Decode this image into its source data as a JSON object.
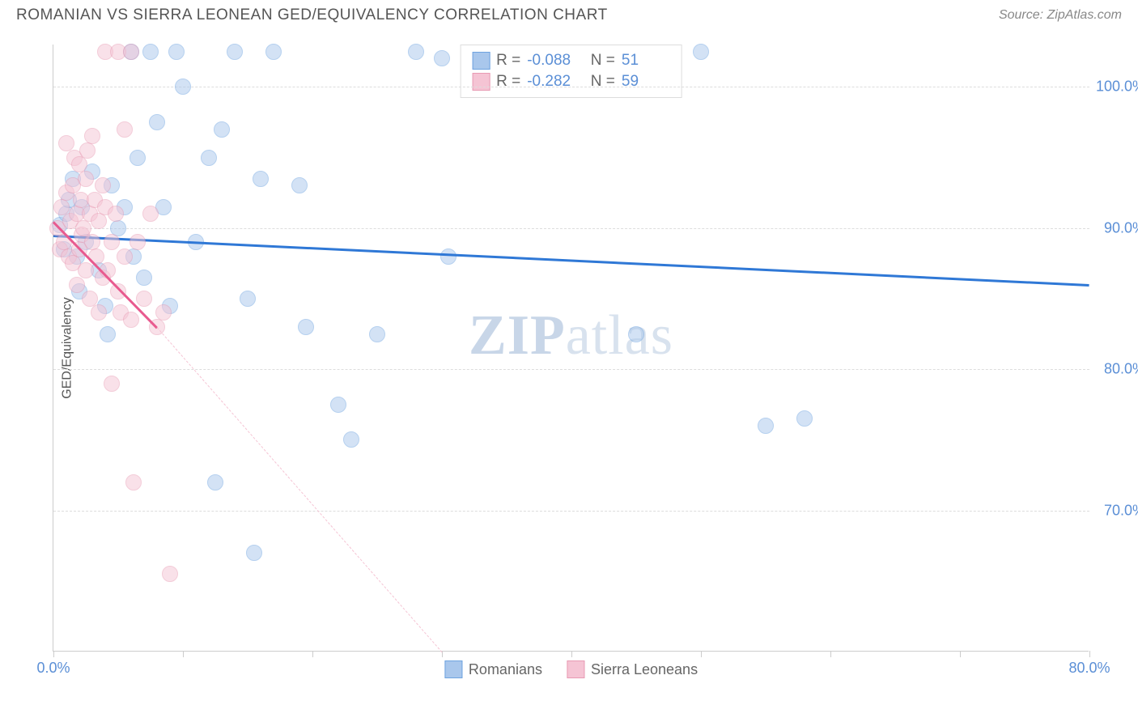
{
  "header": {
    "title": "ROMANIAN VS SIERRA LEONEAN GED/EQUIVALENCY CORRELATION CHART",
    "source": "Source: ZipAtlas.com"
  },
  "chart": {
    "type": "scatter",
    "ylabel": "GED/Equivalency",
    "watermark_bold": "ZIP",
    "watermark_light": "atlas",
    "xlim": [
      0,
      80
    ],
    "ylim": [
      60,
      103
    ],
    "xtick_positions": [
      0,
      10,
      20,
      30,
      40,
      50,
      60,
      70,
      80
    ],
    "xtick_labels": {
      "0": "0.0%",
      "80": "80.0%"
    },
    "ytick_positions": [
      70,
      80,
      90,
      100
    ],
    "ytick_labels": {
      "70": "70.0%",
      "80": "80.0%",
      "90": "90.0%",
      "100": "100.0%"
    },
    "grid_color": "#dddddd",
    "background_color": "#ffffff",
    "marker_radius": 10,
    "marker_opacity": 0.5,
    "series": [
      {
        "name": "Romanians",
        "color": "#6ea3e0",
        "fill": "#a9c7ec",
        "line_color": "#2f78d6",
        "line_width": 3,
        "line_dash": "solid",
        "R": "-0.088",
        "N": "51",
        "trend": {
          "x1": 0,
          "y1": 89.5,
          "x2": 80,
          "y2": 86.0
        },
        "points": [
          [
            0.5,
            90.2
          ],
          [
            0.8,
            88.5
          ],
          [
            1.0,
            91.0
          ],
          [
            1.2,
            92.0
          ],
          [
            1.5,
            93.5
          ],
          [
            1.8,
            88.0
          ],
          [
            2.0,
            85.5
          ],
          [
            2.2,
            91.5
          ],
          [
            2.5,
            89.0
          ],
          [
            3.0,
            94.0
          ],
          [
            3.5,
            87.0
          ],
          [
            4.0,
            84.5
          ],
          [
            4.2,
            82.5
          ],
          [
            4.5,
            93.0
          ],
          [
            5.0,
            90.0
          ],
          [
            5.5,
            91.5
          ],
          [
            6.0,
            102.5
          ],
          [
            6.2,
            88.0
          ],
          [
            6.5,
            95.0
          ],
          [
            7.0,
            86.5
          ],
          [
            7.5,
            102.5
          ],
          [
            8.0,
            97.5
          ],
          [
            8.5,
            91.5
          ],
          [
            9.0,
            84.5
          ],
          [
            9.5,
            102.5
          ],
          [
            10.0,
            100.0
          ],
          [
            11.0,
            89.0
          ],
          [
            12.0,
            95.0
          ],
          [
            12.5,
            72.0
          ],
          [
            13.0,
            97.0
          ],
          [
            14.0,
            102.5
          ],
          [
            15.0,
            85.0
          ],
          [
            15.5,
            67.0
          ],
          [
            16.0,
            93.5
          ],
          [
            17.0,
            102.5
          ],
          [
            19.0,
            93.0
          ],
          [
            19.5,
            83.0
          ],
          [
            22.0,
            77.5
          ],
          [
            23.0,
            75.0
          ],
          [
            25.0,
            82.5
          ],
          [
            28.0,
            102.5
          ],
          [
            30.0,
            102.0
          ],
          [
            30.5,
            88.0
          ],
          [
            45.0,
            82.5
          ],
          [
            50.0,
            102.5
          ],
          [
            55.0,
            76.0
          ],
          [
            58.0,
            76.5
          ]
        ]
      },
      {
        "name": "Sierra Leoneans",
        "color": "#e89ab3",
        "fill": "#f5c4d4",
        "line_color": "#e85a8f",
        "line_width": 3,
        "line_dash": "solid",
        "dash_color": "#f5c4d4",
        "R": "-0.282",
        "N": "59",
        "trend": {
          "x1": 0,
          "y1": 90.5,
          "x2": 8,
          "y2": 83.0
        },
        "trend_dash": {
          "x1": 8,
          "y1": 83.0,
          "x2": 30,
          "y2": 60
        },
        "points": [
          [
            0.3,
            90.0
          ],
          [
            0.5,
            88.5
          ],
          [
            0.6,
            91.5
          ],
          [
            0.8,
            89.0
          ],
          [
            1.0,
            92.5
          ],
          [
            1.0,
            96.0
          ],
          [
            1.2,
            88.0
          ],
          [
            1.3,
            90.5
          ],
          [
            1.5,
            93.0
          ],
          [
            1.5,
            87.5
          ],
          [
            1.6,
            95.0
          ],
          [
            1.8,
            91.0
          ],
          [
            1.8,
            86.0
          ],
          [
            2.0,
            94.5
          ],
          [
            2.0,
            88.5
          ],
          [
            2.1,
            92.0
          ],
          [
            2.2,
            89.5
          ],
          [
            2.3,
            90.0
          ],
          [
            2.5,
            93.5
          ],
          [
            2.5,
            87.0
          ],
          [
            2.6,
            95.5
          ],
          [
            2.8,
            91.0
          ],
          [
            2.8,
            85.0
          ],
          [
            3.0,
            89.0
          ],
          [
            3.0,
            96.5
          ],
          [
            3.2,
            92.0
          ],
          [
            3.3,
            88.0
          ],
          [
            3.5,
            84.0
          ],
          [
            3.5,
            90.5
          ],
          [
            3.8,
            93.0
          ],
          [
            3.8,
            86.5
          ],
          [
            4.0,
            91.5
          ],
          [
            4.0,
            102.5
          ],
          [
            4.2,
            87.0
          ],
          [
            4.5,
            89.0
          ],
          [
            4.5,
            79.0
          ],
          [
            4.8,
            91.0
          ],
          [
            5.0,
            85.5
          ],
          [
            5.0,
            102.5
          ],
          [
            5.2,
            84.0
          ],
          [
            5.5,
            88.0
          ],
          [
            5.5,
            97.0
          ],
          [
            6.0,
            102.5
          ],
          [
            6.0,
            83.5
          ],
          [
            6.2,
            72.0
          ],
          [
            6.5,
            89.0
          ],
          [
            7.0,
            85.0
          ],
          [
            7.5,
            91.0
          ],
          [
            8.0,
            83.0
          ],
          [
            8.5,
            84.0
          ],
          [
            9.0,
            65.5
          ]
        ]
      }
    ],
    "legend": [
      {
        "swatch_fill": "#a9c7ec",
        "swatch_border": "#6ea3e0",
        "label": "Romanians"
      },
      {
        "swatch_fill": "#f5c4d4",
        "swatch_border": "#e89ab3",
        "label": "Sierra Leoneans"
      }
    ]
  }
}
